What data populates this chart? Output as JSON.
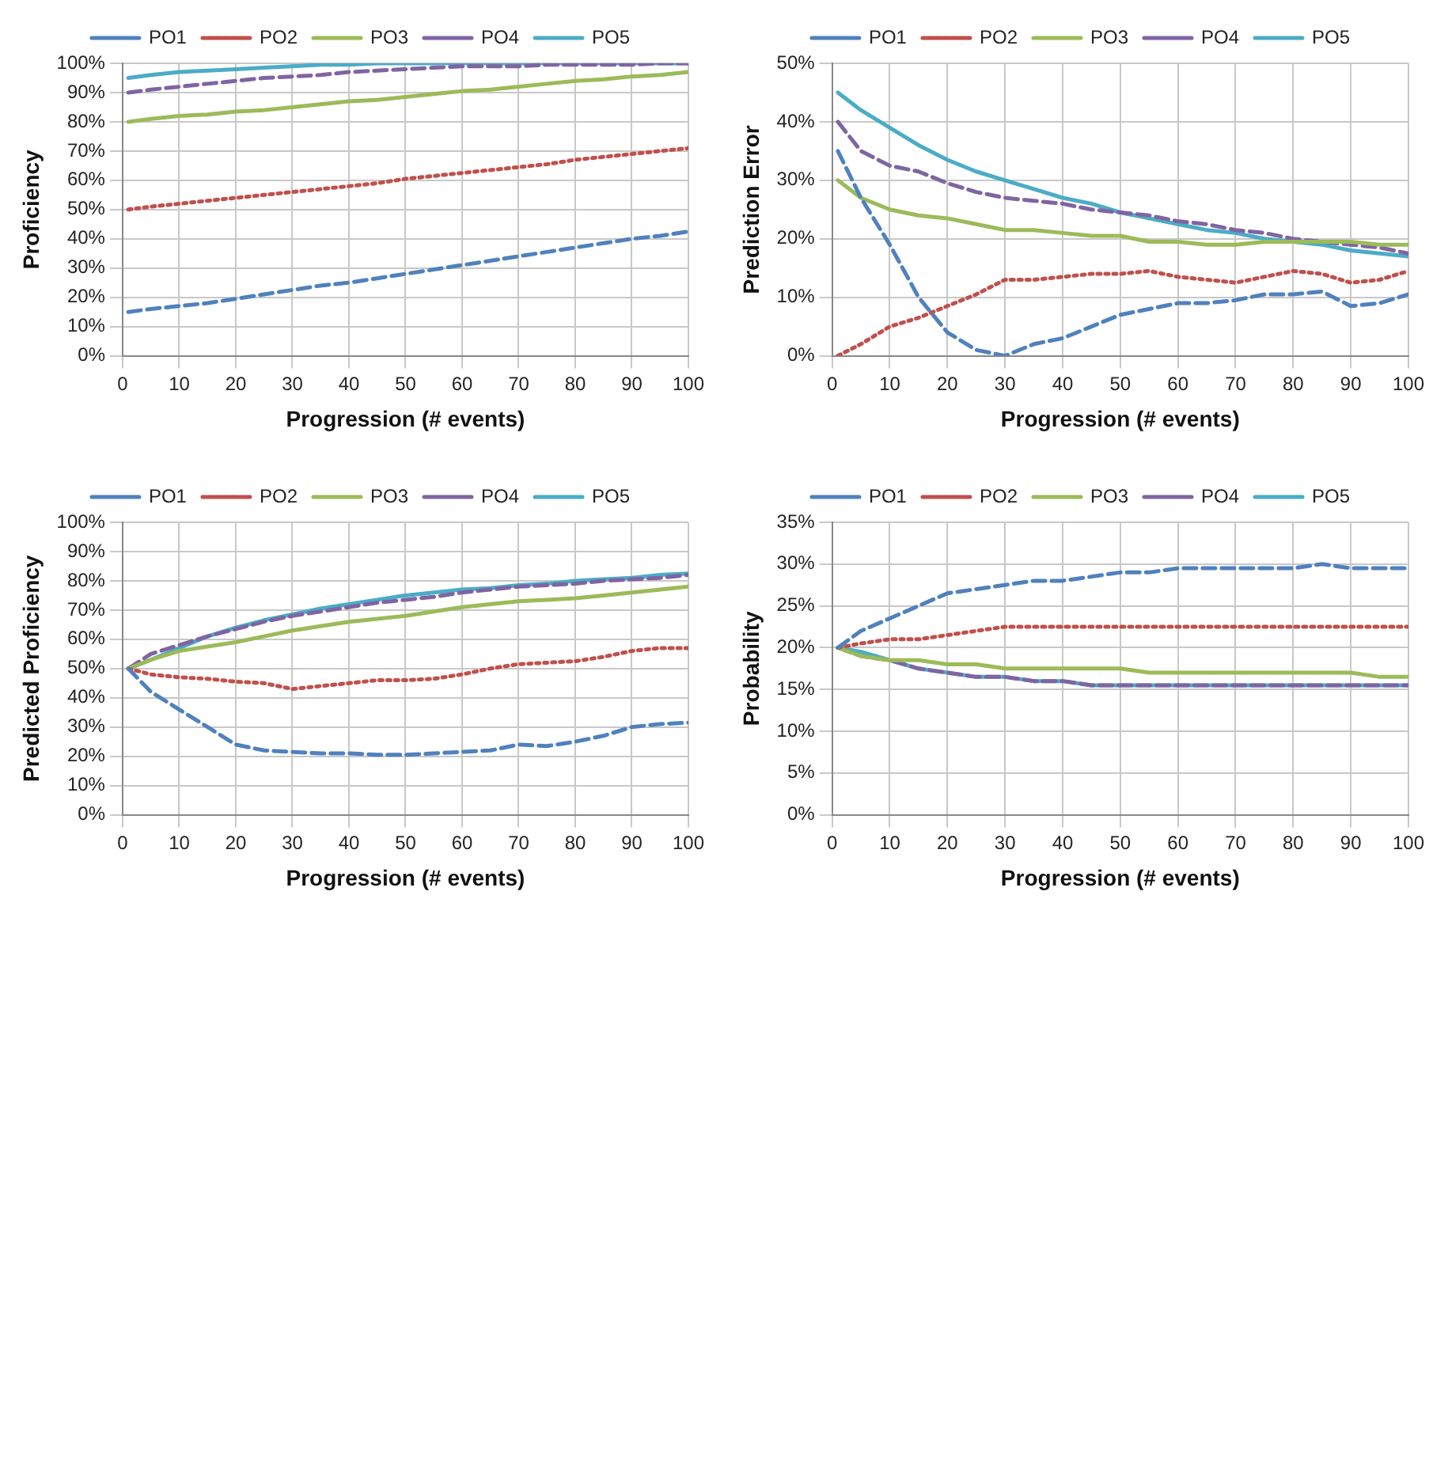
{
  "chart_data": [
    {
      "type": "line",
      "ylabel": "Proficiency",
      "xlabel": "Progression (# events)",
      "legend": "top",
      "grid": true,
      "marker": "none",
      "x": [
        1,
        5,
        10,
        15,
        20,
        25,
        30,
        35,
        40,
        45,
        50,
        55,
        60,
        65,
        70,
        75,
        80,
        85,
        90,
        95,
        100
      ],
      "xlim": [
        0,
        100
      ],
      "xticks": [
        0,
        10,
        20,
        30,
        40,
        50,
        60,
        70,
        80,
        90,
        100
      ],
      "ylim": [
        0,
        100
      ],
      "yticks": [
        {
          "value": 0,
          "label": "0%"
        },
        {
          "value": 10,
          "label": "10%"
        },
        {
          "value": 20,
          "label": "20%"
        },
        {
          "value": 30,
          "label": "30%"
        },
        {
          "value": 40,
          "label": "40%"
        },
        {
          "value": 50,
          "label": "50%"
        },
        {
          "value": 60,
          "label": "60%"
        },
        {
          "value": 70,
          "label": "70%"
        },
        {
          "value": 80,
          "label": "80%"
        },
        {
          "value": 90,
          "label": "90%"
        },
        {
          "value": 100,
          "label": "100%"
        }
      ],
      "series": [
        {
          "name": "PO1",
          "color": "#4f81bd",
          "line_style": "dashed",
          "values": [
            15,
            16,
            17,
            18,
            19.5,
            21,
            22.5,
            24,
            25,
            26.5,
            28,
            29.5,
            31,
            32.5,
            34,
            35.5,
            37,
            38.5,
            40,
            41,
            42.5
          ]
        },
        {
          "name": "PO2",
          "color": "#c0504d",
          "line_style": "dotted",
          "values": [
            50,
            51,
            52,
            53,
            54,
            55,
            56,
            57,
            58,
            59,
            60.5,
            61.5,
            62.5,
            63.5,
            64.5,
            65.5,
            67,
            68,
            69,
            70,
            71
          ]
        },
        {
          "name": "PO3",
          "color": "#9bbb59",
          "line_style": "solid",
          "values": [
            80,
            81,
            82,
            82.5,
            83.5,
            84,
            85,
            86,
            87,
            87.5,
            88.5,
            89.5,
            90.5,
            91,
            92,
            93,
            94,
            94.5,
            95.5,
            96,
            97
          ]
        },
        {
          "name": "PO4",
          "color": "#8064a2",
          "line_style": "dashed",
          "values": [
            90,
            91,
            92,
            93,
            94,
            95,
            95.5,
            96,
            97,
            97.5,
            98,
            98.5,
            99,
            99,
            99,
            99.5,
            99.5,
            99.5,
            99.5,
            100,
            100
          ]
        },
        {
          "name": "PO5",
          "color": "#4bacc6",
          "line_style": "solid",
          "values": [
            95,
            96,
            97,
            97.5,
            98,
            98.5,
            99,
            99.5,
            99.5,
            100,
            100,
            100,
            100,
            100,
            100,
            100,
            100,
            100,
            100,
            100,
            100
          ]
        }
      ]
    },
    {
      "type": "line",
      "ylabel": "Prediction Error",
      "xlabel": "Progression (# events)",
      "legend": "top",
      "grid": true,
      "marker": "none",
      "x": [
        1,
        5,
        10,
        15,
        20,
        25,
        30,
        35,
        40,
        45,
        50,
        55,
        60,
        65,
        70,
        75,
        80,
        85,
        90,
        95,
        100
      ],
      "xlim": [
        0,
        100
      ],
      "xticks": [
        0,
        10,
        20,
        30,
        40,
        50,
        60,
        70,
        80,
        90,
        100
      ],
      "ylim": [
        0,
        50
      ],
      "yticks": [
        {
          "value": 0,
          "label": "0%"
        },
        {
          "value": 10,
          "label": "10%"
        },
        {
          "value": 20,
          "label": "20%"
        },
        {
          "value": 30,
          "label": "30%"
        },
        {
          "value": 40,
          "label": "40%"
        },
        {
          "value": 50,
          "label": "50%"
        }
      ],
      "series": [
        {
          "name": "PO1",
          "color": "#4f81bd",
          "line_style": "dashed",
          "values": [
            35,
            27,
            19,
            10,
            4,
            1,
            0,
            2,
            3,
            5,
            7,
            8,
            9,
            9,
            9.5,
            10.5,
            10.5,
            11,
            8.5,
            9,
            10.5
          ]
        },
        {
          "name": "PO2",
          "color": "#c0504d",
          "line_style": "dotted",
          "values": [
            0,
            2,
            5,
            6.5,
            8.5,
            10.5,
            13,
            13,
            13.5,
            14,
            14,
            14.5,
            13.5,
            13,
            12.5,
            13.5,
            14.5,
            14,
            12.5,
            13,
            14.5
          ]
        },
        {
          "name": "PO3",
          "color": "#9bbb59",
          "line_style": "solid",
          "values": [
            30,
            27,
            25,
            24,
            23.5,
            22.5,
            21.5,
            21.5,
            21,
            20.5,
            20.5,
            19.5,
            19.5,
            19,
            19,
            19.5,
            19.5,
            19.5,
            19.5,
            19,
            19
          ]
        },
        {
          "name": "PO4",
          "color": "#8064a2",
          "line_style": "dashed",
          "values": [
            40,
            35,
            32.5,
            31.5,
            29.5,
            28,
            27,
            26.5,
            26,
            25,
            24.5,
            24,
            23,
            22.5,
            21.5,
            21,
            20,
            19.5,
            19,
            18.5,
            17.5
          ]
        },
        {
          "name": "PO5",
          "color": "#4bacc6",
          "line_style": "solid",
          "values": [
            45,
            42,
            39,
            36,
            33.5,
            31.5,
            30,
            28.5,
            27,
            26,
            24.5,
            23.5,
            22.5,
            21.5,
            21,
            20,
            19.5,
            19,
            18,
            17.5,
            17
          ]
        }
      ]
    },
    {
      "type": "line",
      "ylabel": "Predicted Proficiency",
      "xlabel": "Progression (# events)",
      "legend": "top",
      "grid": true,
      "marker": "none",
      "x": [
        1,
        5,
        10,
        15,
        20,
        25,
        30,
        35,
        40,
        45,
        50,
        55,
        60,
        65,
        70,
        75,
        80,
        85,
        90,
        95,
        100
      ],
      "xlim": [
        0,
        100
      ],
      "xticks": [
        0,
        10,
        20,
        30,
        40,
        50,
        60,
        70,
        80,
        90,
        100
      ],
      "ylim": [
        0,
        100
      ],
      "yticks": [
        {
          "value": 0,
          "label": "0%"
        },
        {
          "value": 10,
          "label": "10%"
        },
        {
          "value": 20,
          "label": "20%"
        },
        {
          "value": 30,
          "label": "30%"
        },
        {
          "value": 40,
          "label": "40%"
        },
        {
          "value": 50,
          "label": "50%"
        },
        {
          "value": 60,
          "label": "60%"
        },
        {
          "value": 70,
          "label": "70%"
        },
        {
          "value": 80,
          "label": "80%"
        },
        {
          "value": 90,
          "label": "90%"
        },
        {
          "value": 100,
          "label": "100%"
        }
      ],
      "series": [
        {
          "name": "PO1",
          "color": "#4f81bd",
          "line_style": "dashed",
          "values": [
            50,
            42,
            36,
            30,
            24,
            22,
            21.5,
            21,
            21,
            20.5,
            20.5,
            21,
            21.5,
            22,
            24,
            23.5,
            25,
            27,
            30,
            31,
            31.5
          ]
        },
        {
          "name": "PO2",
          "color": "#c0504d",
          "line_style": "dotted",
          "values": [
            50,
            48,
            47,
            46.5,
            45.5,
            45,
            43,
            44,
            45,
            46,
            46,
            46.5,
            48,
            50,
            51.5,
            52,
            52.5,
            54,
            56,
            57,
            57
          ]
        },
        {
          "name": "PO3",
          "color": "#9bbb59",
          "line_style": "solid",
          "values": [
            50,
            53,
            56,
            57.5,
            59,
            61,
            63,
            64.5,
            66,
            67,
            68,
            69.5,
            71,
            72,
            73,
            73.5,
            74,
            75,
            76,
            77,
            78
          ]
        },
        {
          "name": "PO4",
          "color": "#8064a2",
          "line_style": "dashed",
          "values": [
            50,
            55,
            58,
            61,
            63.5,
            66,
            68,
            69.5,
            71,
            72.5,
            73.5,
            74.5,
            76,
            77,
            78,
            78.5,
            79,
            80,
            80.5,
            81,
            82
          ]
        },
        {
          "name": "PO5",
          "color": "#4bacc6",
          "line_style": "solid",
          "values": [
            50,
            53,
            57,
            61,
            64,
            66.5,
            68.5,
            70.5,
            72,
            73.5,
            75,
            76,
            77,
            77.5,
            78.5,
            79,
            80,
            80.5,
            81,
            82,
            82.5
          ]
        }
      ]
    },
    {
      "type": "line",
      "ylabel": "Probability",
      "xlabel": "Progression (# events)",
      "legend": "top",
      "grid": true,
      "marker": "none",
      "x": [
        1,
        5,
        10,
        15,
        20,
        25,
        30,
        35,
        40,
        45,
        50,
        55,
        60,
        65,
        70,
        75,
        80,
        85,
        90,
        95,
        100
      ],
      "xlim": [
        0,
        100
      ],
      "xticks": [
        0,
        10,
        20,
        30,
        40,
        50,
        60,
        70,
        80,
        90,
        100
      ],
      "ylim": [
        0,
        35
      ],
      "yticks": [
        {
          "value": 0,
          "label": "0%"
        },
        {
          "value": 5,
          "label": "5%"
        },
        {
          "value": 10,
          "label": "10%"
        },
        {
          "value": 15,
          "label": "15%"
        },
        {
          "value": 20,
          "label": "20%"
        },
        {
          "value": 25,
          "label": "25%"
        },
        {
          "value": 30,
          "label": "30%"
        },
        {
          "value": 35,
          "label": "35%"
        }
      ],
      "series": [
        {
          "name": "PO1",
          "color": "#4f81bd",
          "line_style": "dashed",
          "values": [
            20,
            22,
            23.5,
            25,
            26.5,
            27,
            27.5,
            28,
            28,
            28.5,
            29,
            29,
            29.5,
            29.5,
            29.5,
            29.5,
            29.5,
            30,
            29.5,
            29.5,
            29.5
          ]
        },
        {
          "name": "PO2",
          "color": "#c0504d",
          "line_style": "dotted",
          "values": [
            20,
            20.5,
            21,
            21,
            21.5,
            22,
            22.5,
            22.5,
            22.5,
            22.5,
            22.5,
            22.5,
            22.5,
            22.5,
            22.5,
            22.5,
            22.5,
            22.5,
            22.5,
            22.5,
            22.5
          ]
        },
        {
          "name": "PO3",
          "color": "#9bbb59",
          "line_style": "solid",
          "values": [
            20,
            19,
            18.5,
            18.5,
            18,
            18,
            17.5,
            17.5,
            17.5,
            17.5,
            17.5,
            17,
            17,
            17,
            17,
            17,
            17,
            17,
            17,
            16.5,
            16.5
          ]
        },
        {
          "name": "PO4",
          "color": "#8064a2",
          "line_style": "dashed",
          "values": [
            20,
            19,
            18.5,
            17.5,
            17,
            16.5,
            16.5,
            16,
            16,
            15.5,
            15.5,
            15.5,
            15.5,
            15.5,
            15.5,
            15.5,
            15.5,
            15.5,
            15.5,
            15.5,
            15.5
          ]
        },
        {
          "name": "PO5",
          "color": "#4bacc6",
          "line_style": "solid",
          "values": [
            20,
            19.5,
            18.5,
            17.5,
            17,
            16.5,
            16.5,
            16,
            16,
            15.5,
            15.5,
            15.5,
            15.5,
            15.5,
            15.5,
            15.5,
            15.5,
            15.5,
            15.5,
            15.5,
            15.5
          ]
        }
      ]
    }
  ]
}
